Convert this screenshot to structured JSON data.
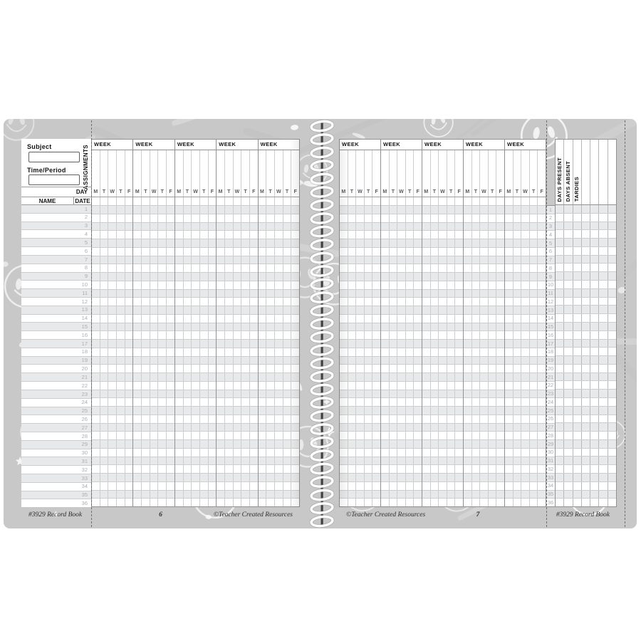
{
  "left_page": {
    "subject_label": "Subject",
    "subject_value": "",
    "time_period_label": "Time/Period",
    "time_period_value": "",
    "assignments_label": "ASSIGNMENTS",
    "day_label": "DAY",
    "name_label": "NAME",
    "date_label": "DATE",
    "week_label": "WEEK",
    "weeks_count": 5,
    "day_letters": [
      "M",
      "T",
      "W",
      "T",
      "F"
    ],
    "student_rows": 36,
    "footer": {
      "left": "#3929 Record Book",
      "page_number": "6",
      "right": "©Teacher Created Resources"
    }
  },
  "right_page": {
    "week_label": "WEEK",
    "weeks_count": 5,
    "day_letters": [
      "M",
      "T",
      "W",
      "T",
      "F"
    ],
    "student_rows": 36,
    "summary_columns": [
      "DAYS PRESENT",
      "DAYS ABSENT",
      "TARDIES",
      "",
      "",
      "",
      ""
    ],
    "footer": {
      "left": "©Teacher Created Resources",
      "page_number": "7",
      "right": "#3929 Record Book"
    }
  },
  "colors": {
    "pattern_gray": "#c8c8c8",
    "row_shade": "#e8e9ea",
    "grid_line": "#cbcdce",
    "group_line": "#8f9194",
    "row_number": "#a9adb2",
    "text": "#141414",
    "spiral_rod": "#3f3f3f"
  }
}
